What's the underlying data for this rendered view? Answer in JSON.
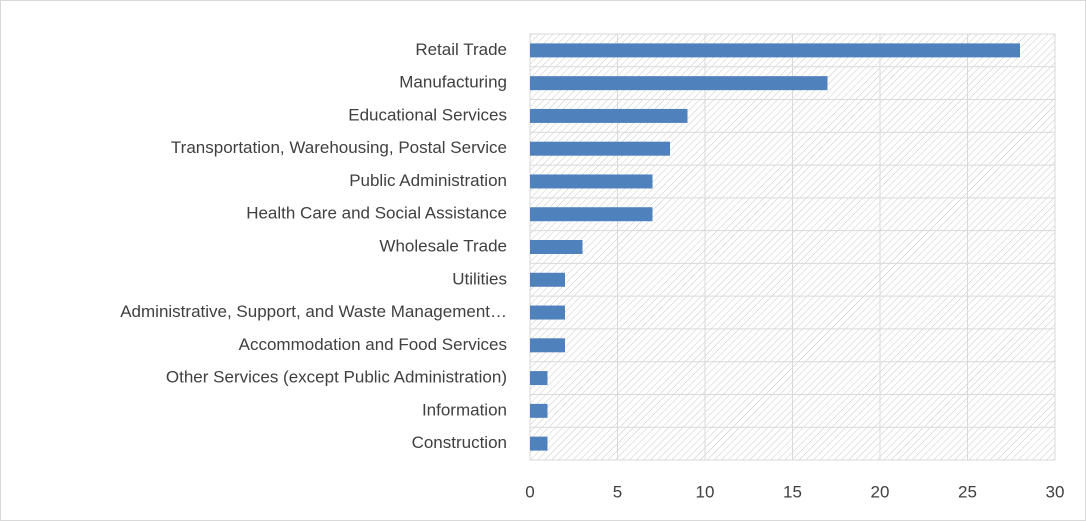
{
  "chart_data": {
    "type": "hbar",
    "categories": [
      "Retail Trade",
      "Manufacturing",
      "Educational Services",
      "Transportation, Warehousing, Postal Service",
      "Public Administration",
      "Health Care and Social Assistance",
      "Wholesale Trade",
      "Utilities",
      "Administrative, Support, and Waste Management…",
      "Accommodation and Food Services",
      "Other Services (except Public Administration)",
      "Information",
      "Construction"
    ],
    "values": [
      28,
      17,
      9,
      8,
      7,
      7,
      3,
      2,
      2,
      2,
      1,
      1,
      1
    ],
    "color": "#4f81bd",
    "xlim": [
      0,
      30
    ],
    "xticks": [
      0,
      5,
      10,
      15,
      20,
      25,
      30
    ],
    "grid": true
  }
}
